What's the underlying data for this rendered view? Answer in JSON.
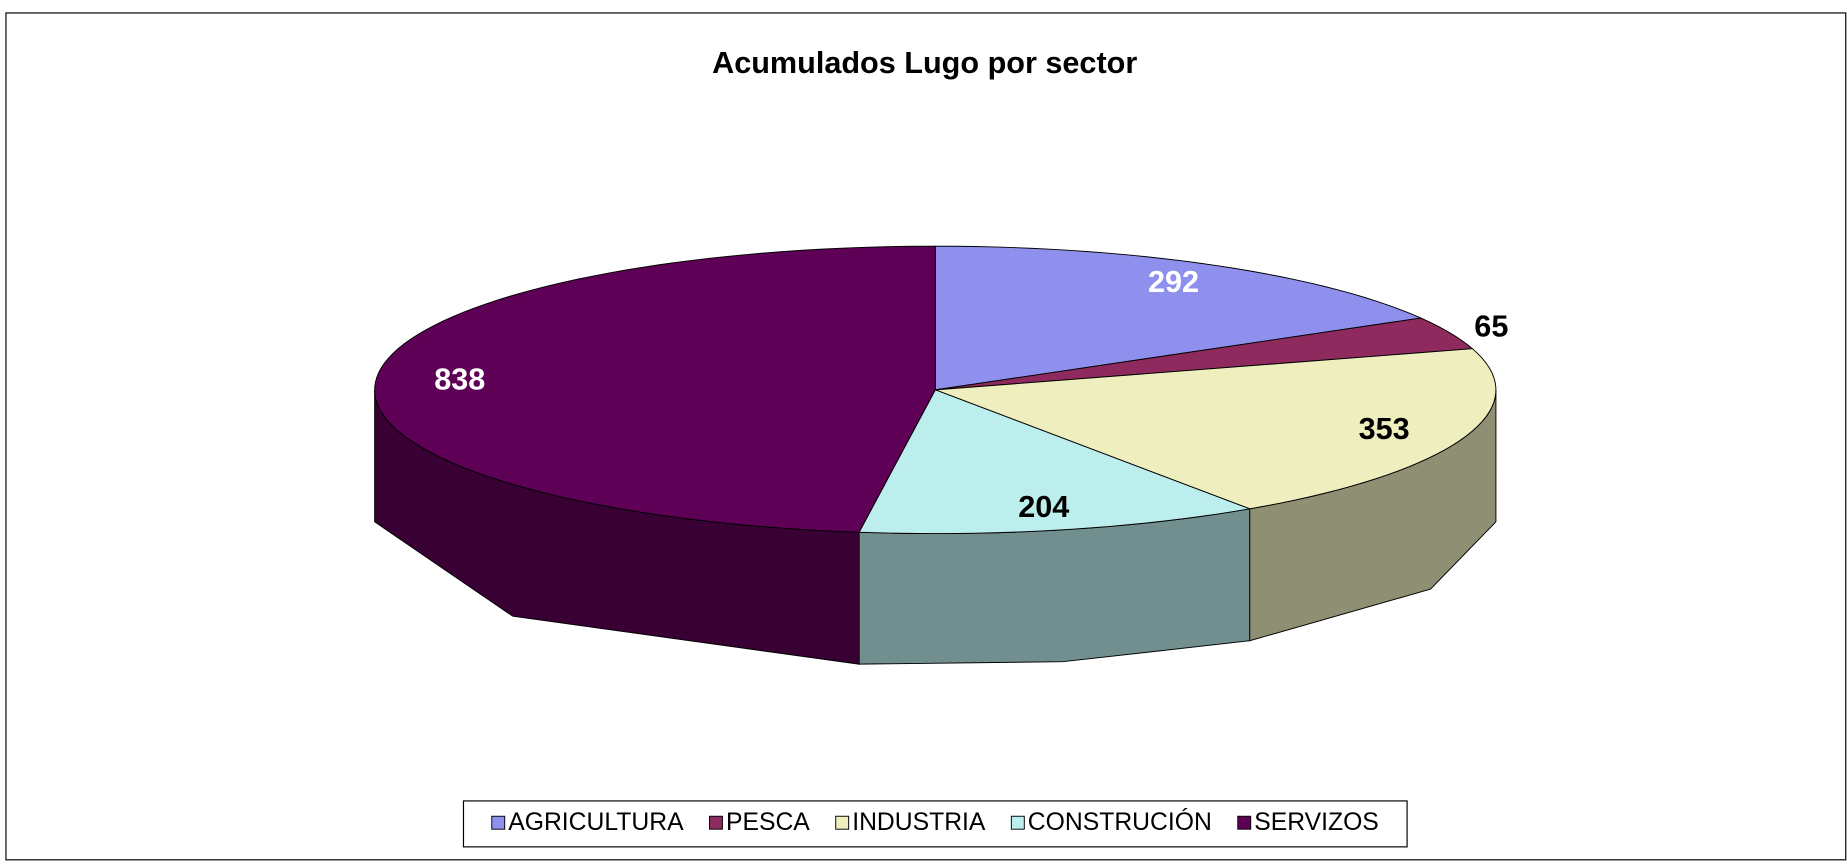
{
  "chart_data": {
    "type": "pie",
    "title": "Acumulados Lugo por sector",
    "categories": [
      "AGRICULTURA",
      "PESCA",
      "INDUSTRIA",
      "CONSTRUCIÓN",
      "SERVIZOS"
    ],
    "values": [
      292,
      65,
      353,
      204,
      838
    ],
    "colors": [
      "#8f8fee",
      "#8e2a5e",
      "#eeeebf",
      "#bdeeee",
      "#5f0057"
    ],
    "legend": "bottom",
    "three_d": true
  }
}
